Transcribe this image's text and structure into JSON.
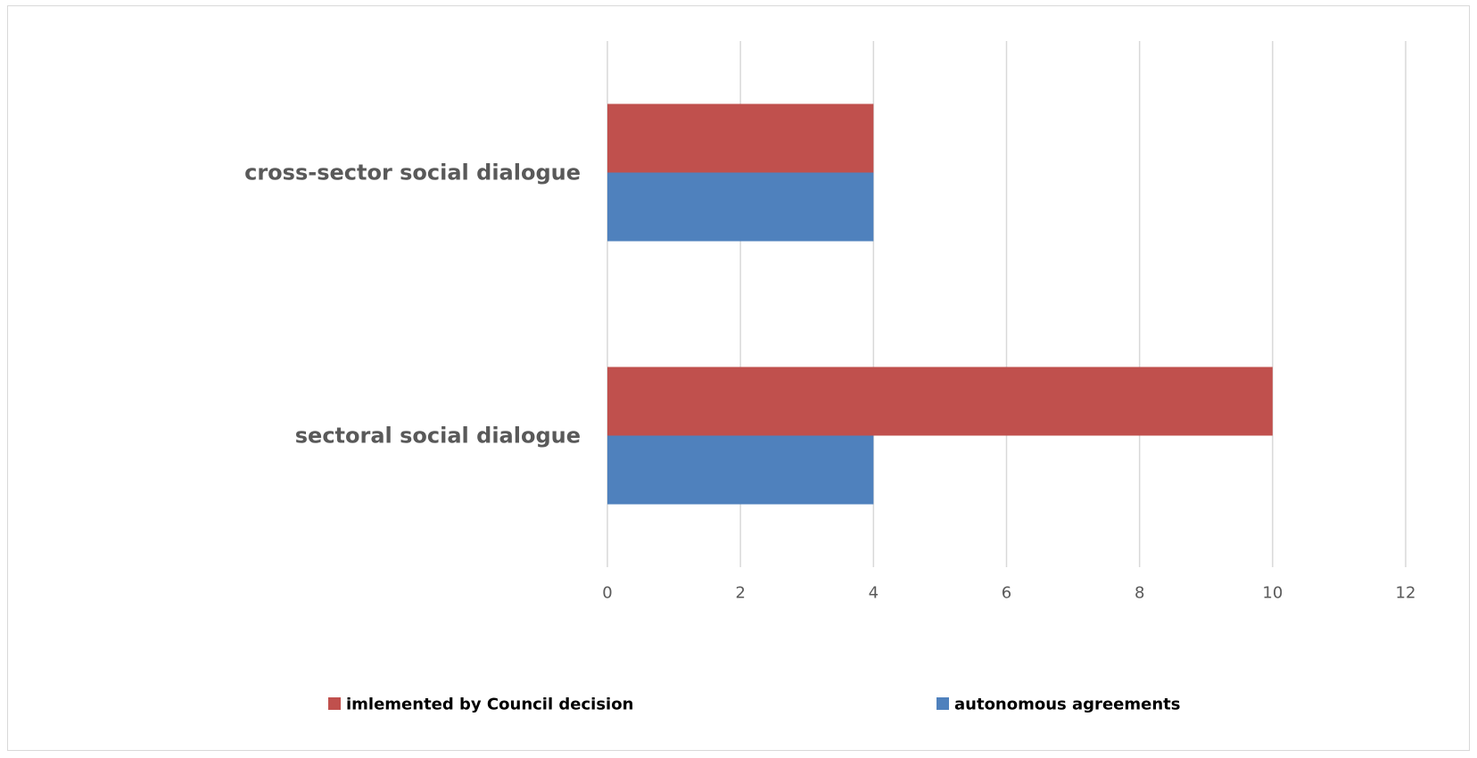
{
  "chart_data": {
    "type": "bar",
    "orientation": "horizontal",
    "categories": [
      "cross-sector social dialogue",
      "sectoral social dialogue"
    ],
    "series": [
      {
        "name": "imlemented by Council decision",
        "values": [
          4,
          10
        ],
        "color": "#C0504D"
      },
      {
        "name": "autonomous agreements",
        "values": [
          4,
          4
        ],
        "color": "#4F81BD"
      }
    ],
    "x_ticks": [
      0,
      2,
      4,
      6,
      8,
      10,
      12
    ],
    "xlim": [
      0,
      12
    ],
    "grid": true,
    "legend_position": "bottom",
    "title": "",
    "xlabel": "",
    "ylabel": ""
  },
  "colors": {
    "grid": "#d9d9d9",
    "text": "#595959"
  }
}
